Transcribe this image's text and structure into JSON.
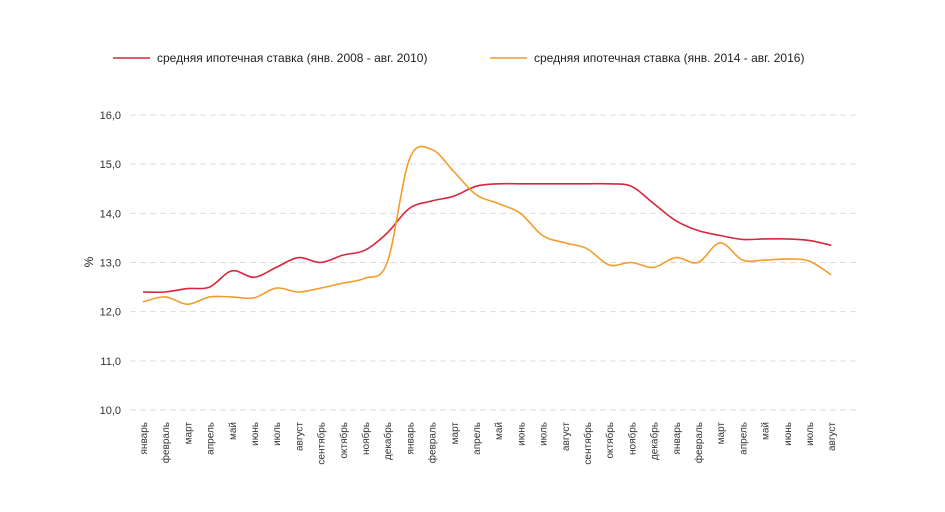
{
  "chart_data": {
    "type": "line",
    "title": "",
    "xlabel": "",
    "ylabel": "%",
    "ylim": [
      10,
      16
    ],
    "yticks": [
      "10,0",
      "11,0",
      "12,0",
      "13,0",
      "14,0",
      "15,0",
      "16,0"
    ],
    "grid": true,
    "legend_position": "top",
    "categories": [
      "январь",
      "февраль",
      "март",
      "апрель",
      "май",
      "июнь",
      "июль",
      "август",
      "сентябрь",
      "октябрь",
      "ноябрь",
      "декабрь",
      "январь",
      "февраль",
      "март",
      "апрель",
      "май",
      "июнь",
      "июль",
      "август",
      "сентябрь",
      "октябрь",
      "ноябрь",
      "декабрь",
      "январь",
      "февраль",
      "март",
      "апрель",
      "май",
      "июнь",
      "июль",
      "август"
    ],
    "series": [
      {
        "name": "средняя ипотечная ставка (янв. 2008 - авг. 2010)",
        "color": "#d7263d",
        "values": [
          12.4,
          12.4,
          12.47,
          12.5,
          12.83,
          12.7,
          12.9,
          13.1,
          13.0,
          13.15,
          13.25,
          13.6,
          14.1,
          14.25,
          14.35,
          14.55,
          14.6,
          14.6,
          14.6,
          14.6,
          14.6,
          14.6,
          14.55,
          14.2,
          13.85,
          13.65,
          13.55,
          13.47,
          13.48,
          13.48,
          13.45,
          13.35
        ]
      },
      {
        "name": "средняя ипотечная ставка (янв. 2014 - авг. 2016)",
        "color": "#f39c2a",
        "values": [
          12.2,
          12.3,
          12.15,
          12.3,
          12.3,
          12.28,
          12.48,
          12.4,
          12.48,
          12.58,
          12.68,
          13.0,
          15.1,
          15.3,
          14.85,
          14.38,
          14.2,
          14.0,
          13.55,
          13.4,
          13.28,
          12.95,
          13.0,
          12.9,
          13.1,
          13.0,
          13.4,
          13.05,
          13.05,
          13.07,
          13.03,
          12.75
        ]
      }
    ]
  }
}
